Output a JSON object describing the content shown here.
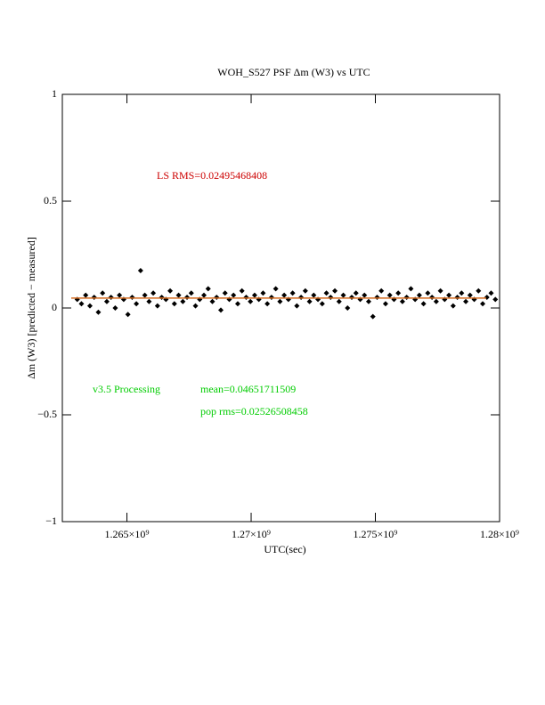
{
  "chart_data": {
    "type": "scatter",
    "title": "WOH_S527 PSF Δm (W3) vs UTC",
    "xlabel": "UTC(sec)",
    "ylabel": "Δm (W3) [predicted − measured]",
    "annotations": [
      {
        "text": "LS RMS=0.02495468408",
        "color": "#cc0000"
      },
      {
        "text": "v3.5 Processing",
        "color": "#00cc00"
      },
      {
        "text": "mean=0.04651711509",
        "color": "#00cc00"
      },
      {
        "text": "pop rms=0.02526508458",
        "color": "#00cc00"
      }
    ],
    "xlim": [
      1262400000,
      1280000000
    ],
    "ylim": [
      -1,
      1
    ],
    "xticks": [
      {
        "value": 1265000000,
        "label": "1.265×10⁹"
      },
      {
        "value": 1270000000,
        "label": "1.27×10⁹"
      },
      {
        "value": 1275000000,
        "label": "1.275×10⁹"
      },
      {
        "value": 1280000000,
        "label": "1.28×10⁹"
      }
    ],
    "yticks": [
      {
        "value": -1,
        "label": "−1"
      },
      {
        "value": -0.5,
        "label": "−0.5"
      },
      0,
      0.5,
      1
    ],
    "mean_line": {
      "value": 0.0465,
      "color": "#d2691e"
    },
    "series": [
      {
        "color": "#000000",
        "x": [
          1263000000,
          1263170000,
          1263340000,
          1263510000,
          1263680000,
          1263850000,
          1264020000,
          1264190000,
          1264360000,
          1264530000,
          1264700000,
          1264870000,
          1265040000,
          1265210000,
          1265380000,
          1265550000,
          1265720000,
          1265890000,
          1266060000,
          1266230000,
          1266400000,
          1266570000,
          1266740000,
          1266910000,
          1267080000,
          1267250000,
          1267420000,
          1267590000,
          1267760000,
          1267930000,
          1268100000,
          1268270000,
          1268440000,
          1268610000,
          1268780000,
          1268950000,
          1269120000,
          1269290000,
          1269460000,
          1269630000,
          1269800000,
          1269970000,
          1270140000,
          1270310000,
          1270480000,
          1270650000,
          1270820000,
          1270990000,
          1271160000,
          1271330000,
          1271500000,
          1271670000,
          1271840000,
          1272010000,
          1272180000,
          1272350000,
          1272520000,
          1272690000,
          1272860000,
          1273030000,
          1273200000,
          1273370000,
          1273540000,
          1273710000,
          1273880000,
          1274050000,
          1274220000,
          1274390000,
          1274560000,
          1274730000,
          1274900000,
          1275070000,
          1275240000,
          1275410000,
          1275580000,
          1275750000,
          1275920000,
          1276090000,
          1276260000,
          1276430000,
          1276600000,
          1276770000,
          1276940000,
          1277110000,
          1277280000,
          1277450000,
          1277620000,
          1277790000,
          1277960000,
          1278130000,
          1278300000,
          1278470000,
          1278640000,
          1278810000,
          1278980000,
          1279150000,
          1279320000,
          1279490000,
          1279660000,
          1279830000
        ],
        "values": [
          0.04,
          0.02,
          0.06,
          0.01,
          0.05,
          -0.02,
          0.07,
          0.03,
          0.05,
          0.0,
          0.06,
          0.04,
          -0.03,
          0.05,
          0.02,
          0.175,
          0.06,
          0.03,
          0.07,
          0.01,
          0.05,
          0.04,
          0.08,
          0.02,
          0.06,
          0.03,
          0.05,
          0.07,
          0.01,
          0.04,
          0.06,
          0.09,
          0.03,
          0.05,
          -0.01,
          0.07,
          0.04,
          0.06,
          0.02,
          0.08,
          0.05,
          0.03,
          0.06,
          0.04,
          0.07,
          0.02,
          0.05,
          0.09,
          0.03,
          0.06,
          0.04,
          0.07,
          0.01,
          0.05,
          0.08,
          0.03,
          0.06,
          0.04,
          0.02,
          0.07,
          0.05,
          0.08,
          0.03,
          0.06,
          0.0,
          0.05,
          0.07,
          0.04,
          0.06,
          0.03,
          -0.04,
          0.05,
          0.08,
          0.02,
          0.06,
          0.04,
          0.07,
          0.03,
          0.05,
          0.09,
          0.04,
          0.06,
          0.02,
          0.07,
          0.05,
          0.03,
          0.08,
          0.04,
          0.06,
          0.01,
          0.05,
          0.07,
          0.03,
          0.06,
          0.04,
          0.08,
          0.02,
          0.05,
          0.07,
          0.04
        ]
      }
    ]
  }
}
